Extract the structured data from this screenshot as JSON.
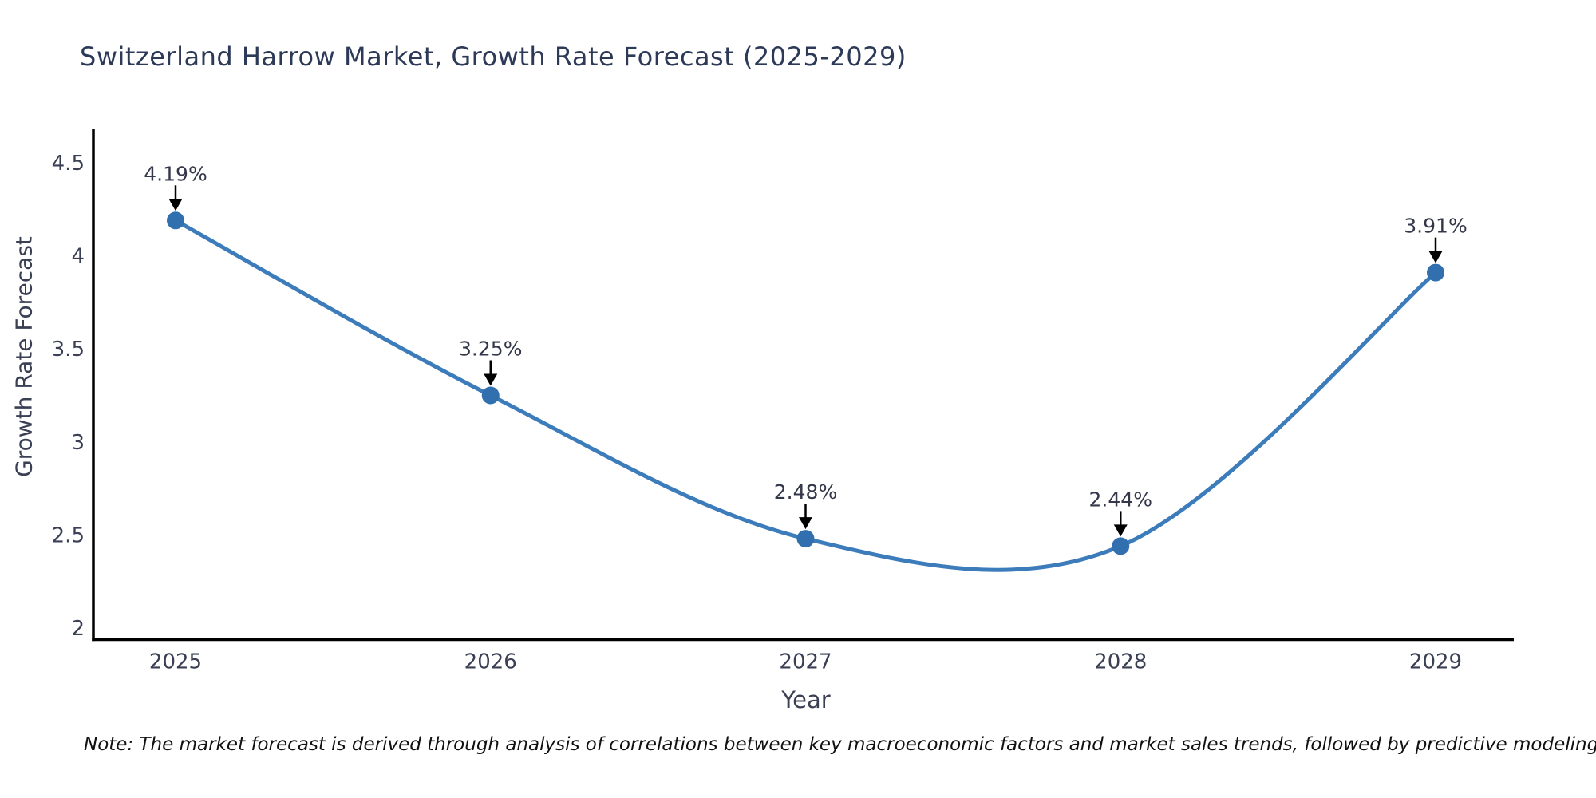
{
  "chart_data": {
    "type": "line",
    "title": "Switzerland Harrow Market, Growth Rate Forecast (2025-2029)",
    "xlabel": "Year",
    "ylabel": "Growth Rate Forecast",
    "categories": [
      2025,
      2026,
      2027,
      2028,
      2029
    ],
    "series": [
      {
        "name": "Growth Rate Forecast",
        "values": [
          4.19,
          3.25,
          2.48,
          2.44,
          3.91
        ],
        "point_labels": [
          "4.19%",
          "3.25%",
          "2.48%",
          "2.44%",
          "3.91%"
        ]
      }
    ],
    "y_ticks": [
      4.5,
      4,
      3.5,
      3,
      2.5,
      2
    ],
    "x_ticks": [
      "2025",
      "2026",
      "2027",
      "2028",
      "2029"
    ],
    "ylim": [
      2,
      4.63
    ],
    "grid": false,
    "legend": "none",
    "line_shape": "spline",
    "annotation_style": "value label with down arrow above each point",
    "colors": {
      "line": "#3d7cba",
      "marker": "#316fae",
      "axis": "#000000",
      "title": "#2c3a57",
      "tick": "#3a3f54",
      "annotation": "#34374a",
      "arrow": "#000000",
      "background": "#ffffff"
    },
    "note": "Note: The market forecast is derived through analysis of correlations between key macroeconomic factors and market sales trends, followed by predictive modeling to project future sales"
  }
}
